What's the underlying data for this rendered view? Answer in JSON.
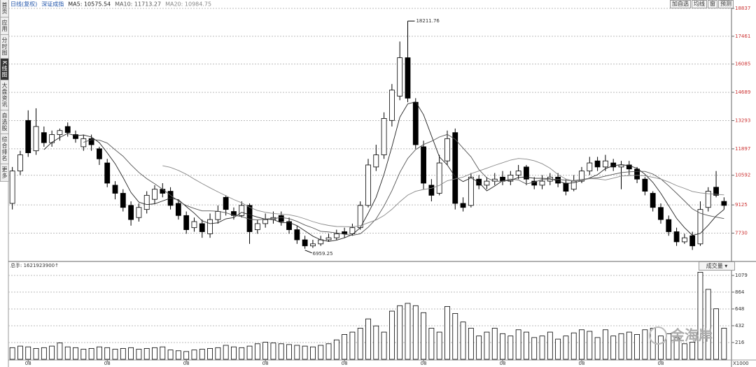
{
  "chart_data": {
    "type": "candlestick",
    "header": [
      "日线(复权)",
      "深证成指"
    ],
    "series": [
      {
        "name": "MA5: 10575.54",
        "color": "#222222",
        "values": [
          null,
          null,
          null,
          null,
          11860,
          12220,
          12460,
          12660,
          12540,
          12580,
          12480,
          12200,
          11700,
          11160,
          10480,
          9740,
          9260,
          9140,
          9180,
          9320,
          9460,
          9380,
          9040,
          8720,
          8340,
          8200,
          8240,
          8440,
          8500,
          8760,
          8640,
          8520,
          8420,
          8400,
          8240,
          8260,
          8100,
          7840,
          7580,
          7400,
          7320,
          7380,
          7500,
          7660,
          8000,
          8720,
          9500,
          10640,
          12000,
          13460,
          14120,
          14220,
          13580,
          12540,
          11500,
          11100,
          10520,
          10280,
          10460,
          10240,
          9820,
          10060,
          10320,
          10340,
          10480,
          10500,
          10440,
          10440,
          10420,
          10300,
          10180,
          10220,
          10320,
          10460,
          10620,
          10920,
          11060,
          11120,
          11060,
          10940,
          10640,
          10240,
          9700,
          9080,
          8460,
          8000,
          7620,
          7720,
          8120,
          8580,
          8900
        ]
      },
      {
        "name": "MA10: 11713.27",
        "color": "#555555",
        "values": [
          null,
          null,
          null,
          null,
          null,
          null,
          null,
          null,
          null,
          12220,
          12350,
          12330,
          12180,
          11850,
          11530,
          11110,
          10730,
          10420,
          10170,
          9900,
          9600,
          9320,
          9090,
          8950,
          8830,
          8830,
          8810,
          8740,
          8610,
          8550,
          8420,
          8380,
          8430,
          8450,
          8500,
          8450,
          8310,
          8130,
          7990,
          7820,
          7790,
          7740,
          7670,
          7620,
          7700,
          8020,
          8440,
          9070,
          9830,
          10730,
          11420,
          11860,
          12110,
          12270,
          12480,
          12610,
          12370,
          11930,
          11500,
          10870,
          10460,
          10290,
          10300,
          10400,
          10360,
          10160,
          10250,
          10380,
          10380,
          10390,
          10340,
          10330,
          10380,
          10440,
          10460,
          10550,
          10640,
          10720,
          10760,
          10780,
          10780,
          10650,
          10410,
          10070,
          9700,
          9320,
          8930,
          8710,
          8600,
          8520,
          8450
        ]
      },
      {
        "name": "MA20: 10984.75",
        "color": "#888888",
        "values": [
          null,
          null,
          null,
          null,
          null,
          null,
          null,
          null,
          null,
          null,
          null,
          null,
          null,
          null,
          null,
          null,
          null,
          null,
          null,
          11060,
          10980,
          10830,
          10640,
          10400,
          10180,
          9970,
          9770,
          9580,
          9390,
          9230,
          9010,
          8850,
          8760,
          8700,
          8670,
          8640,
          8560,
          8440,
          8300,
          8190,
          8110,
          8060,
          8050,
          8040,
          8100,
          8240,
          8380,
          8600,
          8910,
          9280,
          9610,
          9800,
          9890,
          9950,
          10090,
          10320,
          10410,
          10500,
          10670,
          10800,
          10940,
          11080,
          11210,
          11340,
          11420,
          11390,
          11310,
          11160,
          10940,
          10630,
          10400,
          10310,
          10340,
          10420,
          10410,
          10360,
          10450,
          10550,
          10570,
          10590,
          10560,
          10490,
          10400,
          10260,
          10080,
          9940,
          9790,
          9720,
          9680,
          9650,
          9620
        ]
      }
    ],
    "candles": [
      [
        9200,
        11000,
        8900,
        10800
      ],
      [
        10800,
        11800,
        10600,
        11600
      ],
      [
        13300,
        13800,
        11500,
        11700
      ],
      [
        11800,
        13900,
        11600,
        13000
      ],
      [
        12700,
        13000,
        12000,
        12200
      ],
      [
        12200,
        12800,
        12000,
        12600
      ],
      [
        12600,
        12900,
        12300,
        12800
      ],
      [
        13000,
        13200,
        12500,
        12700
      ],
      [
        12600,
        12800,
        12200,
        12400
      ],
      [
        12000,
        12600,
        11800,
        12400
      ],
      [
        12400,
        12600,
        11800,
        12100
      ],
      [
        11900,
        12000,
        11100,
        11400
      ],
      [
        11200,
        11400,
        10000,
        10200
      ],
      [
        10100,
        10300,
        9400,
        9700
      ],
      [
        9700,
        9900,
        8800,
        9000
      ],
      [
        9100,
        9300,
        8100,
        8400
      ],
      [
        8500,
        9200,
        8300,
        9000
      ],
      [
        8900,
        9800,
        8700,
        9600
      ],
      [
        9400,
        10100,
        9200,
        9900
      ],
      [
        9900,
        10200,
        9500,
        9700
      ],
      [
        9800,
        10000,
        8900,
        9100
      ],
      [
        9200,
        9400,
        8400,
        8600
      ],
      [
        8600,
        8800,
        7700,
        7900
      ],
      [
        8000,
        8500,
        7800,
        8300
      ],
      [
        8200,
        8400,
        7500,
        7800
      ],
      [
        7700,
        8700,
        7500,
        8400
      ],
      [
        8400,
        9100,
        8200,
        8800
      ],
      [
        9500,
        9600,
        8600,
        8900
      ],
      [
        8800,
        9000,
        8400,
        8600
      ],
      [
        8600,
        9300,
        8500,
        9100
      ],
      [
        9100,
        9200,
        7200,
        7800
      ],
      [
        7900,
        8400,
        7700,
        8200
      ],
      [
        8200,
        8700,
        8000,
        8400
      ],
      [
        8400,
        8800,
        8200,
        8500
      ],
      [
        8600,
        8800,
        8100,
        8300
      ],
      [
        8300,
        8500,
        7700,
        7900
      ],
      [
        7900,
        8100,
        7200,
        7400
      ],
      [
        7400,
        7600,
        6959.25,
        7100
      ],
      [
        7100,
        7400,
        7000,
        7200
      ],
      [
        7200,
        7600,
        7100,
        7400
      ],
      [
        7400,
        7700,
        7300,
        7500
      ],
      [
        7500,
        7900,
        7400,
        7700
      ],
      [
        7800,
        8000,
        7500,
        7700
      ],
      [
        7700,
        8200,
        7600,
        8000
      ],
      [
        8000,
        9300,
        7900,
        9100
      ],
      [
        9100,
        11400,
        9000,
        11100
      ],
      [
        11000,
        12100,
        10800,
        11600
      ],
      [
        11600,
        13700,
        11400,
        13400
      ],
      [
        13300,
        15100,
        13000,
        14800
      ],
      [
        14500,
        17200,
        14300,
        16400
      ],
      [
        16400,
        18211.76,
        14200,
        14400
      ],
      [
        14200,
        14400,
        11900,
        12100
      ],
      [
        12000,
        12300,
        9900,
        10200
      ],
      [
        10100,
        10400,
        9300,
        9600
      ],
      [
        9700,
        11600,
        9600,
        11200
      ],
      [
        11300,
        12800,
        11100,
        12400
      ],
      [
        12700,
        12900,
        8900,
        9200
      ],
      [
        9200,
        9500,
        8800,
        9000
      ],
      [
        9100,
        10700,
        9000,
        10500
      ],
      [
        10400,
        10600,
        9900,
        10100
      ],
      [
        10100,
        10500,
        9900,
        10300
      ],
      [
        10300,
        10700,
        10100,
        10400
      ],
      [
        10500,
        10800,
        10100,
        10300
      ],
      [
        10300,
        10800,
        10100,
        10600
      ],
      [
        10600,
        11100,
        10400,
        10800
      ],
      [
        11000,
        11100,
        10100,
        10400
      ],
      [
        10300,
        10500,
        9900,
        10100
      ],
      [
        10100,
        10600,
        9900,
        10300
      ],
      [
        10300,
        10700,
        10100,
        10500
      ],
      [
        10500,
        10700,
        10000,
        10200
      ],
      [
        10200,
        10400,
        9600,
        9800
      ],
      [
        9900,
        10600,
        9800,
        10300
      ],
      [
        10300,
        11000,
        10200,
        10800
      ],
      [
        10800,
        11500,
        10600,
        11200
      ],
      [
        11300,
        11500,
        10800,
        11000
      ],
      [
        11000,
        11600,
        10800,
        11300
      ],
      [
        11200,
        11400,
        10800,
        11000
      ],
      [
        11000,
        11300,
        9900,
        11100
      ],
      [
        11100,
        11300,
        10600,
        10900
      ],
      [
        10900,
        11000,
        10200,
        10400
      ],
      [
        10400,
        10500,
        9600,
        9800
      ],
      [
        9700,
        9800,
        8800,
        9000
      ],
      [
        9000,
        9200,
        8200,
        8400
      ],
      [
        8400,
        8600,
        7600,
        7800
      ],
      [
        7800,
        8000,
        7100,
        7300
      ],
      [
        7300,
        7700,
        7200,
        7500
      ],
      [
        7600,
        7800,
        6900,
        7100
      ],
      [
        7200,
        9300,
        7100,
        8900
      ],
      [
        9000,
        10000,
        8800,
        9800
      ],
      [
        10000,
        10800,
        9500,
        9600
      ],
      [
        9300,
        9500,
        8900,
        9100
      ]
    ],
    "categories": [
      null,
      null,
      "08",
      null,
      null,
      null,
      null,
      null,
      null,
      null,
      null,
      null,
      "08",
      null,
      null,
      null,
      null,
      null,
      null,
      null,
      null,
      null,
      "08",
      null,
      null,
      null,
      null,
      null,
      null,
      null,
      null,
      null,
      "08",
      null,
      null,
      null,
      null,
      null,
      null,
      null,
      null,
      null,
      "08",
      null,
      null,
      null,
      null,
      null,
      null,
      null,
      null,
      null,
      "08",
      null,
      null,
      null,
      null,
      null,
      null,
      null,
      null,
      null,
      "08",
      null,
      null,
      null,
      null,
      null,
      null,
      null,
      null,
      null,
      "08",
      null,
      null,
      null,
      null,
      null,
      null,
      null,
      null,
      null,
      "08",
      null,
      null,
      null,
      null,
      null,
      null,
      null,
      null
    ],
    "ylim": [
      6400,
      19080
    ],
    "yticks": [
      18837,
      17461,
      16085,
      14689,
      13293,
      11897,
      10592,
      9125,
      7730
    ],
    "grid": true,
    "up_color": "#ffffff",
    "down_color": "#000000",
    "tick_color": "#cc3333",
    "high_label": 18211.76,
    "low_label": 6959.25,
    "volume": {
      "label": "总手: 1621923900↑",
      "indicator": "成交量",
      "unit": "X1000",
      "ylim": [
        0,
        1160
      ],
      "yticks": [
        1079,
        864,
        648,
        432,
        216
      ],
      "values": [
        150,
        170,
        160,
        140,
        150,
        170,
        210,
        160,
        150,
        130,
        140,
        160,
        150,
        130,
        140,
        150,
        130,
        140,
        150,
        160,
        120,
        110,
        100,
        120,
        130,
        140,
        150,
        180,
        160,
        150,
        170,
        200,
        220,
        210,
        200,
        190,
        180,
        170,
        160,
        180,
        200,
        250,
        320,
        350,
        400,
        520,
        430,
        350,
        620,
        690,
        720,
        690,
        600,
        400,
        350,
        680,
        590,
        480,
        400,
        300,
        350,
        400,
        330,
        300,
        380,
        350,
        280,
        300,
        350,
        260,
        300,
        340,
        380,
        360,
        280,
        380,
        300,
        330,
        350,
        320,
        380,
        400,
        300,
        330,
        280,
        200,
        220,
        1120,
        900,
        650,
        400
      ]
    },
    "watermark": "金海岸"
  },
  "sidebar": {
    "tabs": [
      "首页",
      "应用",
      "分时图",
      "K线图",
      "大盘资讯",
      "自选股",
      "综合排名",
      "更多"
    ],
    "active": 3
  },
  "toolbar": {
    "buttons": [
      "加自选",
      "均线",
      "窗",
      "预测"
    ]
  }
}
